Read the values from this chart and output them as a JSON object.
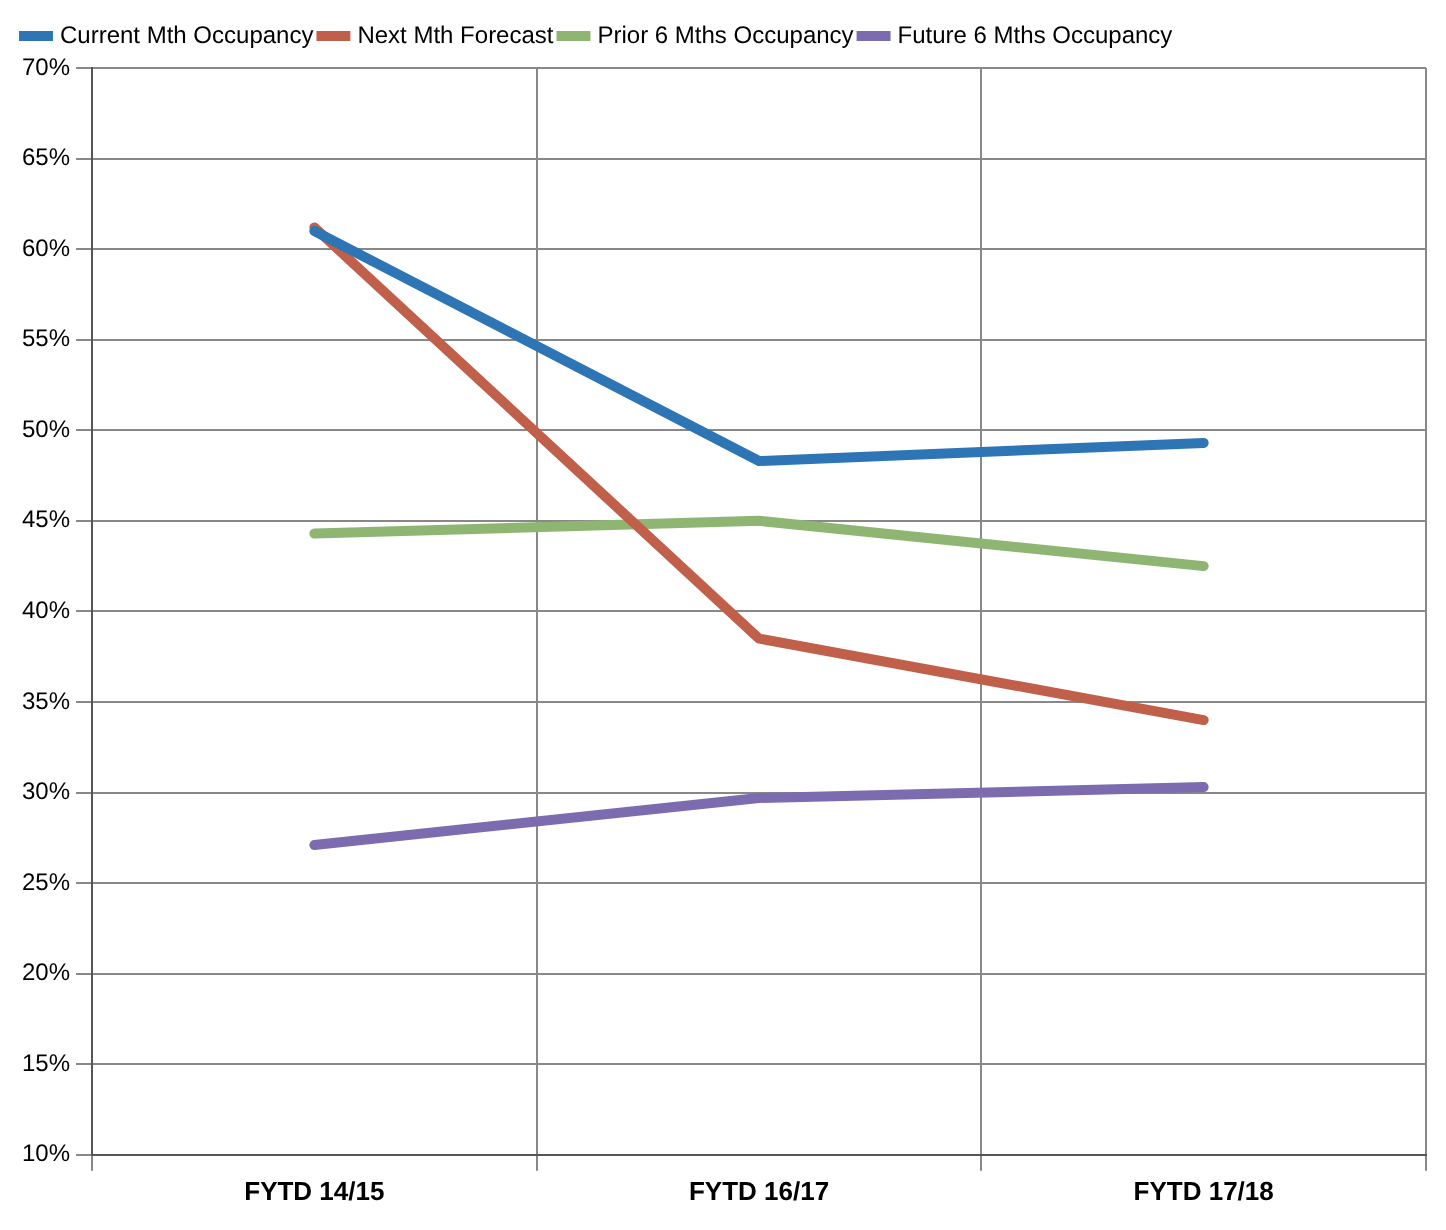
{
  "chart_data": {
    "type": "line",
    "categories": [
      "FYTD 14/15",
      "FYTD 16/17",
      "FYTD 17/18"
    ],
    "series": [
      {
        "name": "Current Mth Occupancy",
        "color": "#2e75b6",
        "values": [
          61.0,
          48.3,
          49.3
        ]
      },
      {
        "name": "Next Mth Forecast",
        "color": "#c0604a",
        "values": [
          61.2,
          38.5,
          34.0
        ]
      },
      {
        "name": "Prior 6 Mths Occupancy",
        "color": "#8fb573",
        "values": [
          44.3,
          45.0,
          42.5
        ]
      },
      {
        "name": "Future 6 Mths Occupancy",
        "color": "#7d6bb0",
        "values": [
          27.1,
          29.7,
          30.3
        ]
      }
    ],
    "ylim": [
      10,
      70
    ],
    "yticks": [
      {
        "value": 10,
        "label": "10%"
      },
      {
        "value": 15,
        "label": "15%"
      },
      {
        "value": 20,
        "label": "20%"
      },
      {
        "value": 25,
        "label": "25%"
      },
      {
        "value": 30,
        "label": "30%"
      },
      {
        "value": 35,
        "label": "35%"
      },
      {
        "value": 40,
        "label": "40%"
      },
      {
        "value": 45,
        "label": "45%"
      },
      {
        "value": 50,
        "label": "50%"
      },
      {
        "value": 55,
        "label": "55%"
      },
      {
        "value": 60,
        "label": "60%"
      },
      {
        "value": 65,
        "label": "65%"
      },
      {
        "value": 70,
        "label": "70%"
      }
    ],
    "grid": true,
    "legend": "top",
    "marker": "none",
    "line_style": "solid"
  }
}
